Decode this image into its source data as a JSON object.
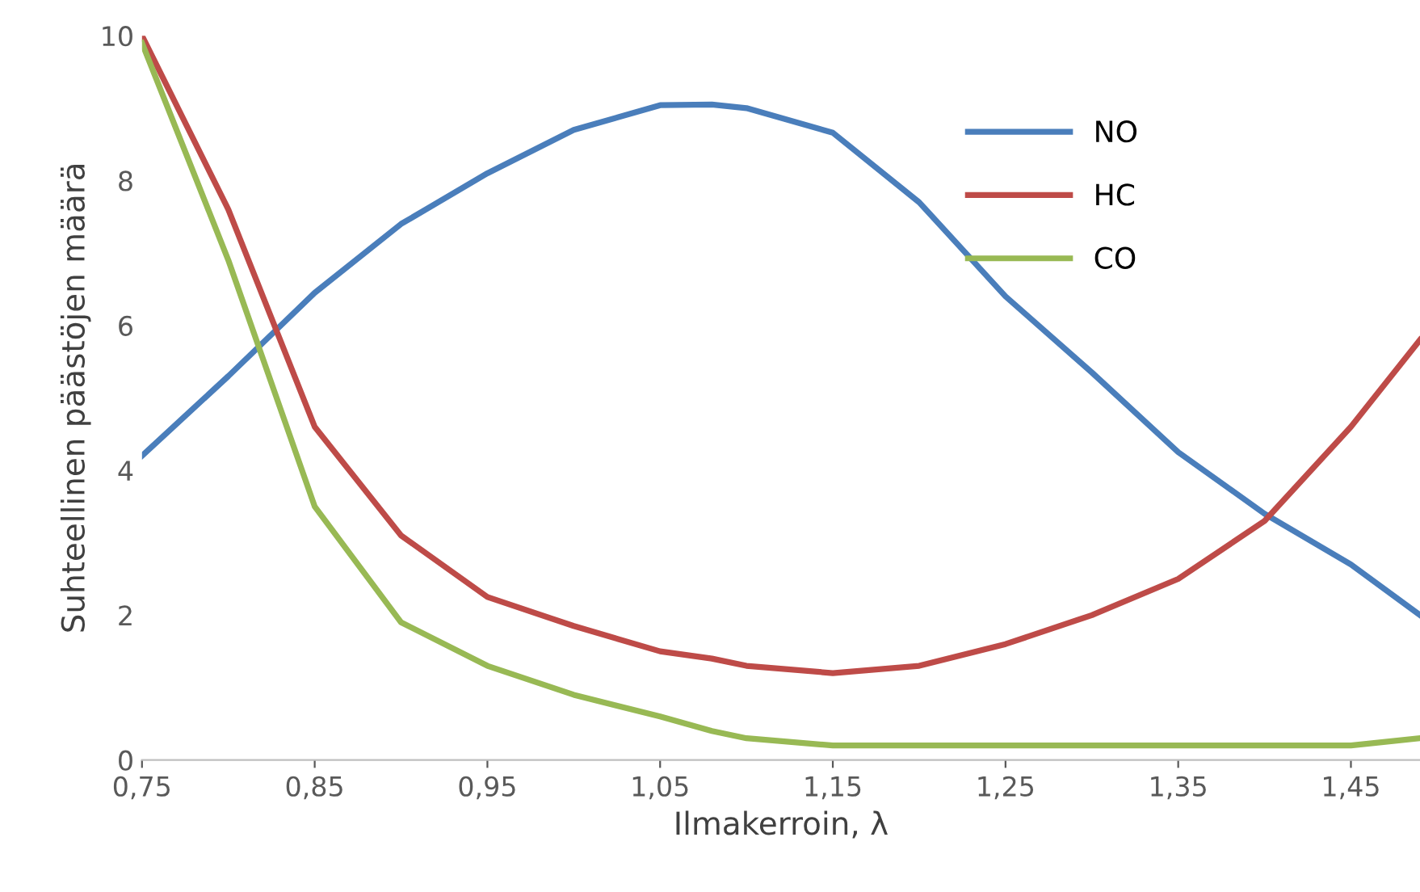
{
  "chart_data": {
    "type": "line",
    "xlabel": "Ilmakerroin, λ",
    "ylabel": "Suhteellinen päästöjen määrä",
    "x": [
      0.75,
      0.8,
      0.85,
      0.9,
      0.95,
      1.0,
      1.05,
      1.08,
      1.1,
      1.15,
      1.2,
      1.25,
      1.3,
      1.35,
      1.4,
      1.45,
      1.49
    ],
    "series": [
      {
        "name": "NO",
        "color": "#4a7ebb",
        "values": [
          4.2,
          5.3,
          6.45,
          7.4,
          8.1,
          8.7,
          9.04,
          9.05,
          9.0,
          8.66,
          7.7,
          6.4,
          5.35,
          4.25,
          3.4,
          2.7,
          2.0
        ]
      },
      {
        "name": "HC",
        "color": "#be4b48",
        "values": [
          10,
          7.6,
          4.6,
          3.1,
          2.25,
          1.85,
          1.5,
          1.4,
          1.3,
          1.2,
          1.3,
          1.6,
          2.0,
          2.5,
          3.3,
          4.6,
          5.8
        ]
      },
      {
        "name": "CO",
        "color": "#98b954",
        "values": [
          9.9,
          6.9,
          3.5,
          1.9,
          1.3,
          0.9,
          0.6,
          0.4,
          0.3,
          0.2,
          0.2,
          0.2,
          0.2,
          0.2,
          0.2,
          0.2,
          0.3
        ]
      }
    ],
    "xlim": [
      0.75,
      1.49
    ],
    "ylim": [
      0,
      10
    ],
    "xticks": [
      {
        "value": 0.75,
        "label": "0,75"
      },
      {
        "value": 0.85,
        "label": "0,85"
      },
      {
        "value": 0.95,
        "label": "0,95"
      },
      {
        "value": 1.05,
        "label": "1,05"
      },
      {
        "value": 1.15,
        "label": "1,15"
      },
      {
        "value": 1.25,
        "label": "1,25"
      },
      {
        "value": 1.35,
        "label": "1,35"
      },
      {
        "value": 1.45,
        "label": "1,45"
      }
    ],
    "yticks": [
      0,
      2,
      4,
      6,
      8,
      10
    ],
    "grid": false,
    "legend": "top right",
    "marker": "none",
    "line_style": "solid"
  }
}
